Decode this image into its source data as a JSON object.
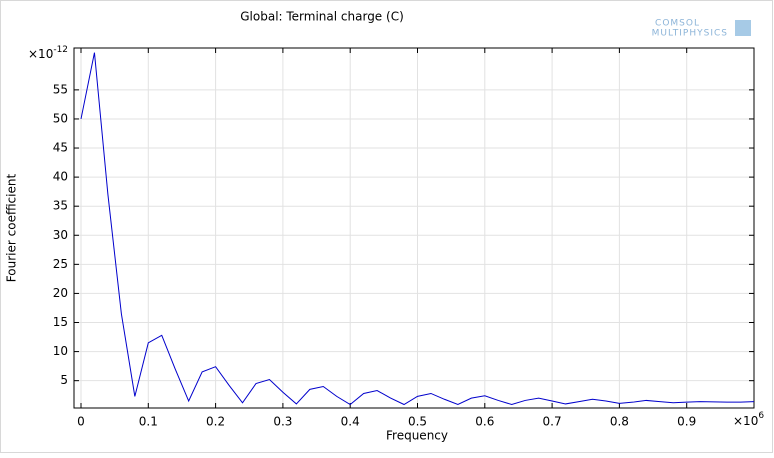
{
  "chart_data": {
    "type": "line",
    "title": "Global: Terminal charge (C)",
    "x_label": "Frequency",
    "y_label": "Fourier coefficient",
    "x_multiplier": {
      "base": "×10",
      "exponent": "6"
    },
    "y_multiplier": {
      "base": "×10",
      "exponent": "-12"
    },
    "logo": [
      "COMSOL",
      "MULTIPHYSICS"
    ],
    "x": [
      0,
      0.02,
      0.04,
      0.06,
      0.08,
      0.1,
      0.12,
      0.14,
      0.16,
      0.18,
      0.2,
      0.22,
      0.24,
      0.26,
      0.28,
      0.3,
      0.32,
      0.34,
      0.36,
      0.38,
      0.4,
      0.42,
      0.44,
      0.46,
      0.48,
      0.5,
      0.52,
      0.54,
      0.56,
      0.58,
      0.6,
      0.62,
      0.64,
      0.66,
      0.68,
      0.7,
      0.72,
      0.74,
      0.76,
      0.78,
      0.8,
      0.82,
      0.84,
      0.86,
      0.88,
      0.9,
      0.92,
      0.94,
      0.96,
      0.98,
      1
    ],
    "series": [
      {
        "color": "#0000cc",
        "values": [
          50,
          61.4,
          37,
          16.5,
          2.3,
          11.5,
          12.8,
          7,
          1.5,
          6.5,
          7.4,
          4.2,
          1.2,
          4.5,
          5.2,
          3,
          1,
          3.5,
          4,
          2.3,
          0.9,
          2.8,
          3.3,
          2,
          0.9,
          2.3,
          2.8,
          1.8,
          0.9,
          2,
          2.4,
          1.6,
          0.9,
          1.6,
          2,
          1.5,
          1,
          1.4,
          1.8,
          1.5,
          1.1,
          1.3,
          1.6,
          1.4,
          1.2,
          1.3,
          1.4,
          1.35,
          1.3,
          1.3,
          1.4
        ]
      }
    ],
    "xlim": [
      -0.0104,
      1
    ],
    "ylim": [
      0.3,
      62.2
    ],
    "xticks": [
      0,
      0.1,
      0.2,
      0.3,
      0.4,
      0.5,
      0.6,
      0.7,
      0.8,
      0.9
    ],
    "yticks": [
      5,
      10,
      15,
      20,
      25,
      30,
      35,
      40,
      45,
      50,
      55
    ],
    "grid": true
  }
}
